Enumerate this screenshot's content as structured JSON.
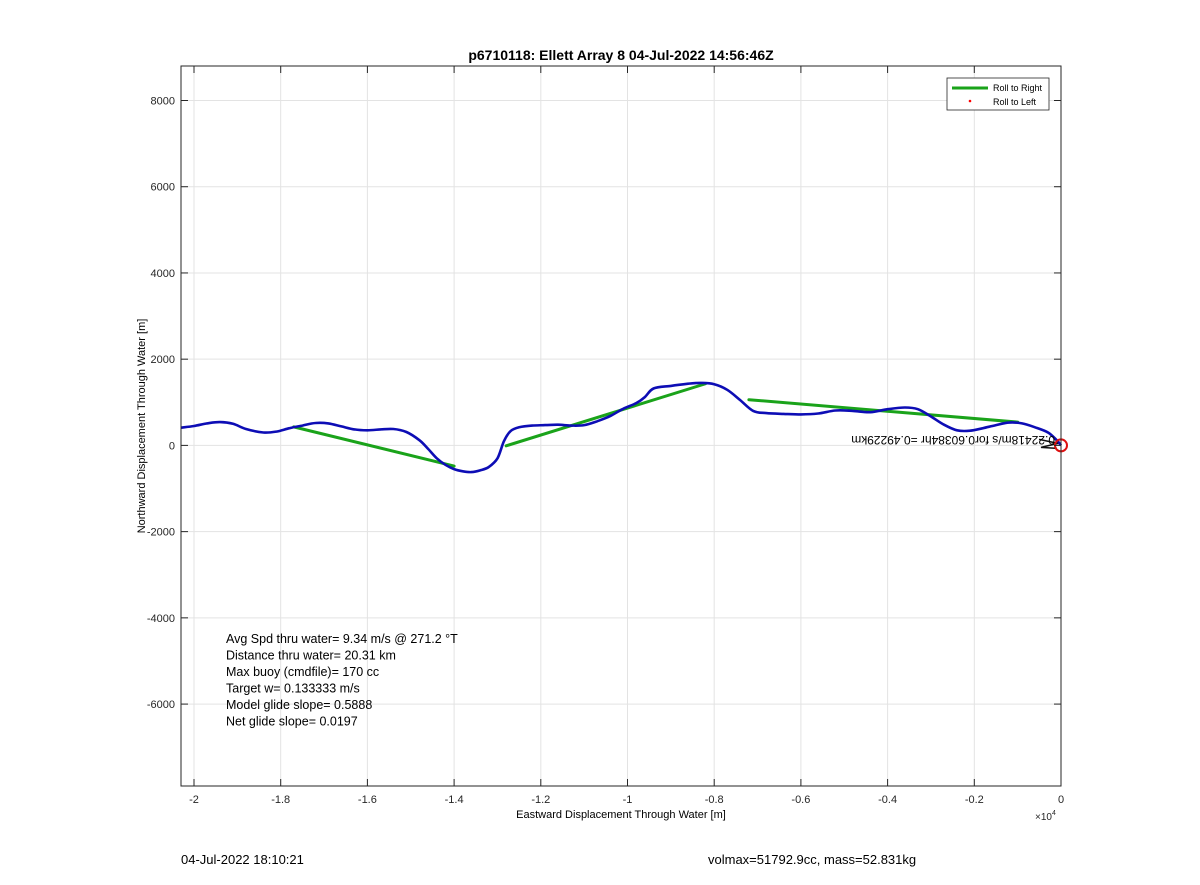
{
  "chart_data": {
    "type": "line",
    "title": "p6710118: Ellett Array 8 04-Jul-2022 14:56:46Z",
    "xlabel": "Eastward Displacement Through Water [m]",
    "ylabel": "Northward Displacement Through Water [m]",
    "x_exponent_label": "×10",
    "x_exponent": "4",
    "xlim": [
      -20300,
      0
    ],
    "ylim": [
      -7900,
      8800
    ],
    "x_ticks": [
      -20000,
      -18000,
      -16000,
      -14000,
      -12000,
      -10000,
      -8000,
      -6000,
      -4000,
      -2000,
      0
    ],
    "x_tick_labels": [
      "-2",
      "-1.8",
      "-1.6",
      "-1.4",
      "-1.2",
      "-1",
      "-0.8",
      "-0.6",
      "-0.4",
      "-0.2",
      "0"
    ],
    "y_ticks": [
      -6000,
      -4000,
      -2000,
      0,
      2000,
      4000,
      6000,
      8000
    ],
    "y_tick_labels": [
      "-6000",
      "-4000",
      "-2000",
      "0",
      "2000",
      "4000",
      "6000",
      "8000"
    ],
    "grid": true,
    "legend": {
      "placement": "top-right",
      "entries": [
        "Roll to Right",
        "Roll to Left"
      ]
    },
    "series": [
      {
        "name": "Roll to Right",
        "color": "#1aa31a",
        "segments": [
          [
            [
              -17700,
              430
            ],
            [
              -14000,
              -480
            ]
          ],
          [
            [
              -12800,
              -10
            ],
            [
              -8200,
              1430
            ]
          ],
          [
            [
              -7200,
              1060
            ],
            [
              -1000,
              540
            ]
          ]
        ]
      },
      {
        "color": "#0d0db5",
        "points": [
          [
            -20300,
            410
          ],
          [
            -20000,
            450
          ],
          [
            -19700,
            510
          ],
          [
            -19400,
            540
          ],
          [
            -19100,
            500
          ],
          [
            -18800,
            380
          ],
          [
            -18400,
            300
          ],
          [
            -18100,
            320
          ],
          [
            -17800,
            400
          ],
          [
            -17500,
            460
          ],
          [
            -17200,
            520
          ],
          [
            -16900,
            510
          ],
          [
            -16600,
            440
          ],
          [
            -16300,
            370
          ],
          [
            -16000,
            350
          ],
          [
            -15700,
            370
          ],
          [
            -15400,
            380
          ],
          [
            -15100,
            310
          ],
          [
            -14800,
            120
          ],
          [
            -14600,
            -80
          ],
          [
            -14400,
            -300
          ],
          [
            -14200,
            -450
          ],
          [
            -14000,
            -550
          ],
          [
            -13800,
            -600
          ],
          [
            -13600,
            -620
          ],
          [
            -13400,
            -580
          ],
          [
            -13200,
            -500
          ],
          [
            -13000,
            -300
          ],
          [
            -12850,
            100
          ],
          [
            -12700,
            330
          ],
          [
            -12500,
            420
          ],
          [
            -12200,
            460
          ],
          [
            -11900,
            470
          ],
          [
            -11600,
            480
          ],
          [
            -11300,
            460
          ],
          [
            -11000,
            470
          ],
          [
            -10700,
            560
          ],
          [
            -10400,
            680
          ],
          [
            -10100,
            850
          ],
          [
            -9800,
            980
          ],
          [
            -9600,
            1120
          ],
          [
            -9400,
            1320
          ],
          [
            -9000,
            1380
          ],
          [
            -8600,
            1430
          ],
          [
            -8300,
            1450
          ],
          [
            -8000,
            1420
          ],
          [
            -7700,
            1290
          ],
          [
            -7400,
            1050
          ],
          [
            -7100,
            800
          ],
          [
            -6800,
            750
          ],
          [
            -6400,
            730
          ],
          [
            -6000,
            720
          ],
          [
            -5600,
            740
          ],
          [
            -5200,
            810
          ],
          [
            -4800,
            800
          ],
          [
            -4400,
            770
          ],
          [
            -4000,
            840
          ],
          [
            -3600,
            880
          ],
          [
            -3300,
            840
          ],
          [
            -3000,
            670
          ],
          [
            -2700,
            480
          ],
          [
            -2400,
            350
          ],
          [
            -2100,
            340
          ],
          [
            -1800,
            400
          ],
          [
            -1500,
            470
          ],
          [
            -1200,
            530
          ],
          [
            -900,
            510
          ],
          [
            -600,
            420
          ],
          [
            -300,
            300
          ],
          [
            -100,
            120
          ],
          [
            0,
            0
          ]
        ]
      },
      {
        "name": "Roll to Left",
        "color": "#ff0000",
        "points": []
      }
    ],
    "annotations": [
      {
        "text": "Avg Spd thru water=  9.34 m/s @ 271.2 °T"
      },
      {
        "text": "Distance thru water= 20.31 km"
      },
      {
        "text": "Max buoy (cmdfile)= 170 cc"
      },
      {
        "text": "Target w= 0.133333 m/s"
      },
      {
        "text": "Model glide slope= 0.5888"
      },
      {
        "text": "Net glide slope= 0.0197"
      }
    ],
    "flipped_label": "0.22418m/s for0.60384hr =0.49229km",
    "end_marker": {
      "x": 0,
      "y": 0,
      "color": "#dd1111"
    }
  },
  "footer": {
    "left": "04-Jul-2022 18:10:21",
    "right": "volmax=51792.9cc, mass=52.831kg"
  }
}
